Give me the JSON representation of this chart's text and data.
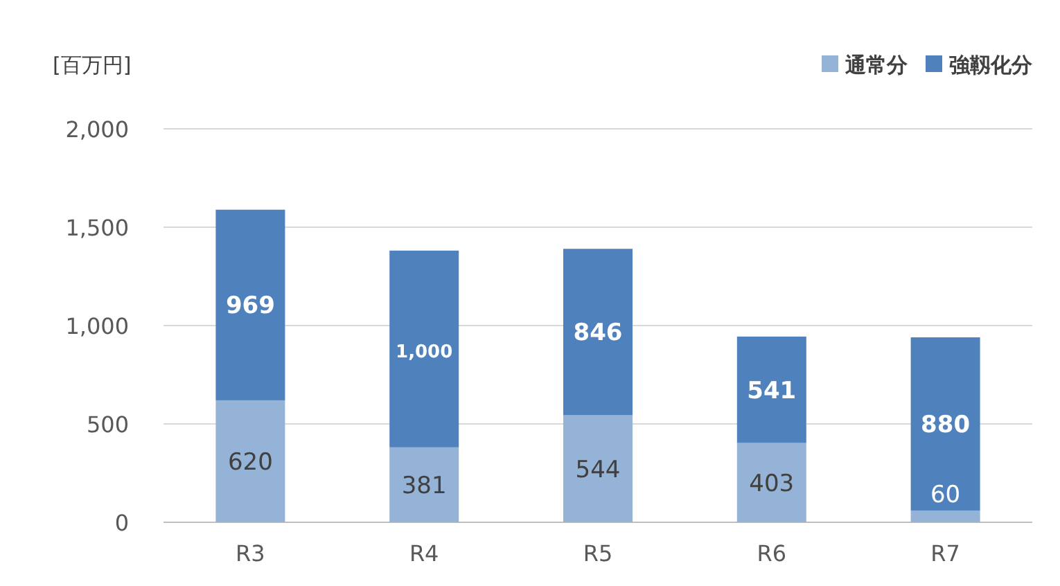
{
  "chart_data": {
    "type": "bar",
    "stacked": true,
    "ylabel": "[百万円]",
    "categories": [
      "R3",
      "R4",
      "R5",
      "R6",
      "R7"
    ],
    "series": [
      {
        "name": "通常分",
        "color": "#95b3d7",
        "values": [
          620,
          381,
          544,
          403,
          60
        ],
        "value_labels": [
          "620",
          "381",
          "544",
          "403",
          "60"
        ]
      },
      {
        "name": "強靱化分",
        "color": "#4f81bd",
        "values": [
          969,
          1000,
          846,
          541,
          880
        ],
        "value_labels": [
          "969",
          "1,000",
          "846",
          "541",
          "880"
        ]
      }
    ],
    "ylim": [
      0,
      2000
    ],
    "yticks": [
      0,
      500,
      {
        "value": 1000,
        "label": "1,000"
      },
      {
        "value": 1500,
        "label": "1,500"
      },
      {
        "value": 2000,
        "label": "2,000"
      }
    ],
    "grid": "y",
    "legend": "top right"
  }
}
